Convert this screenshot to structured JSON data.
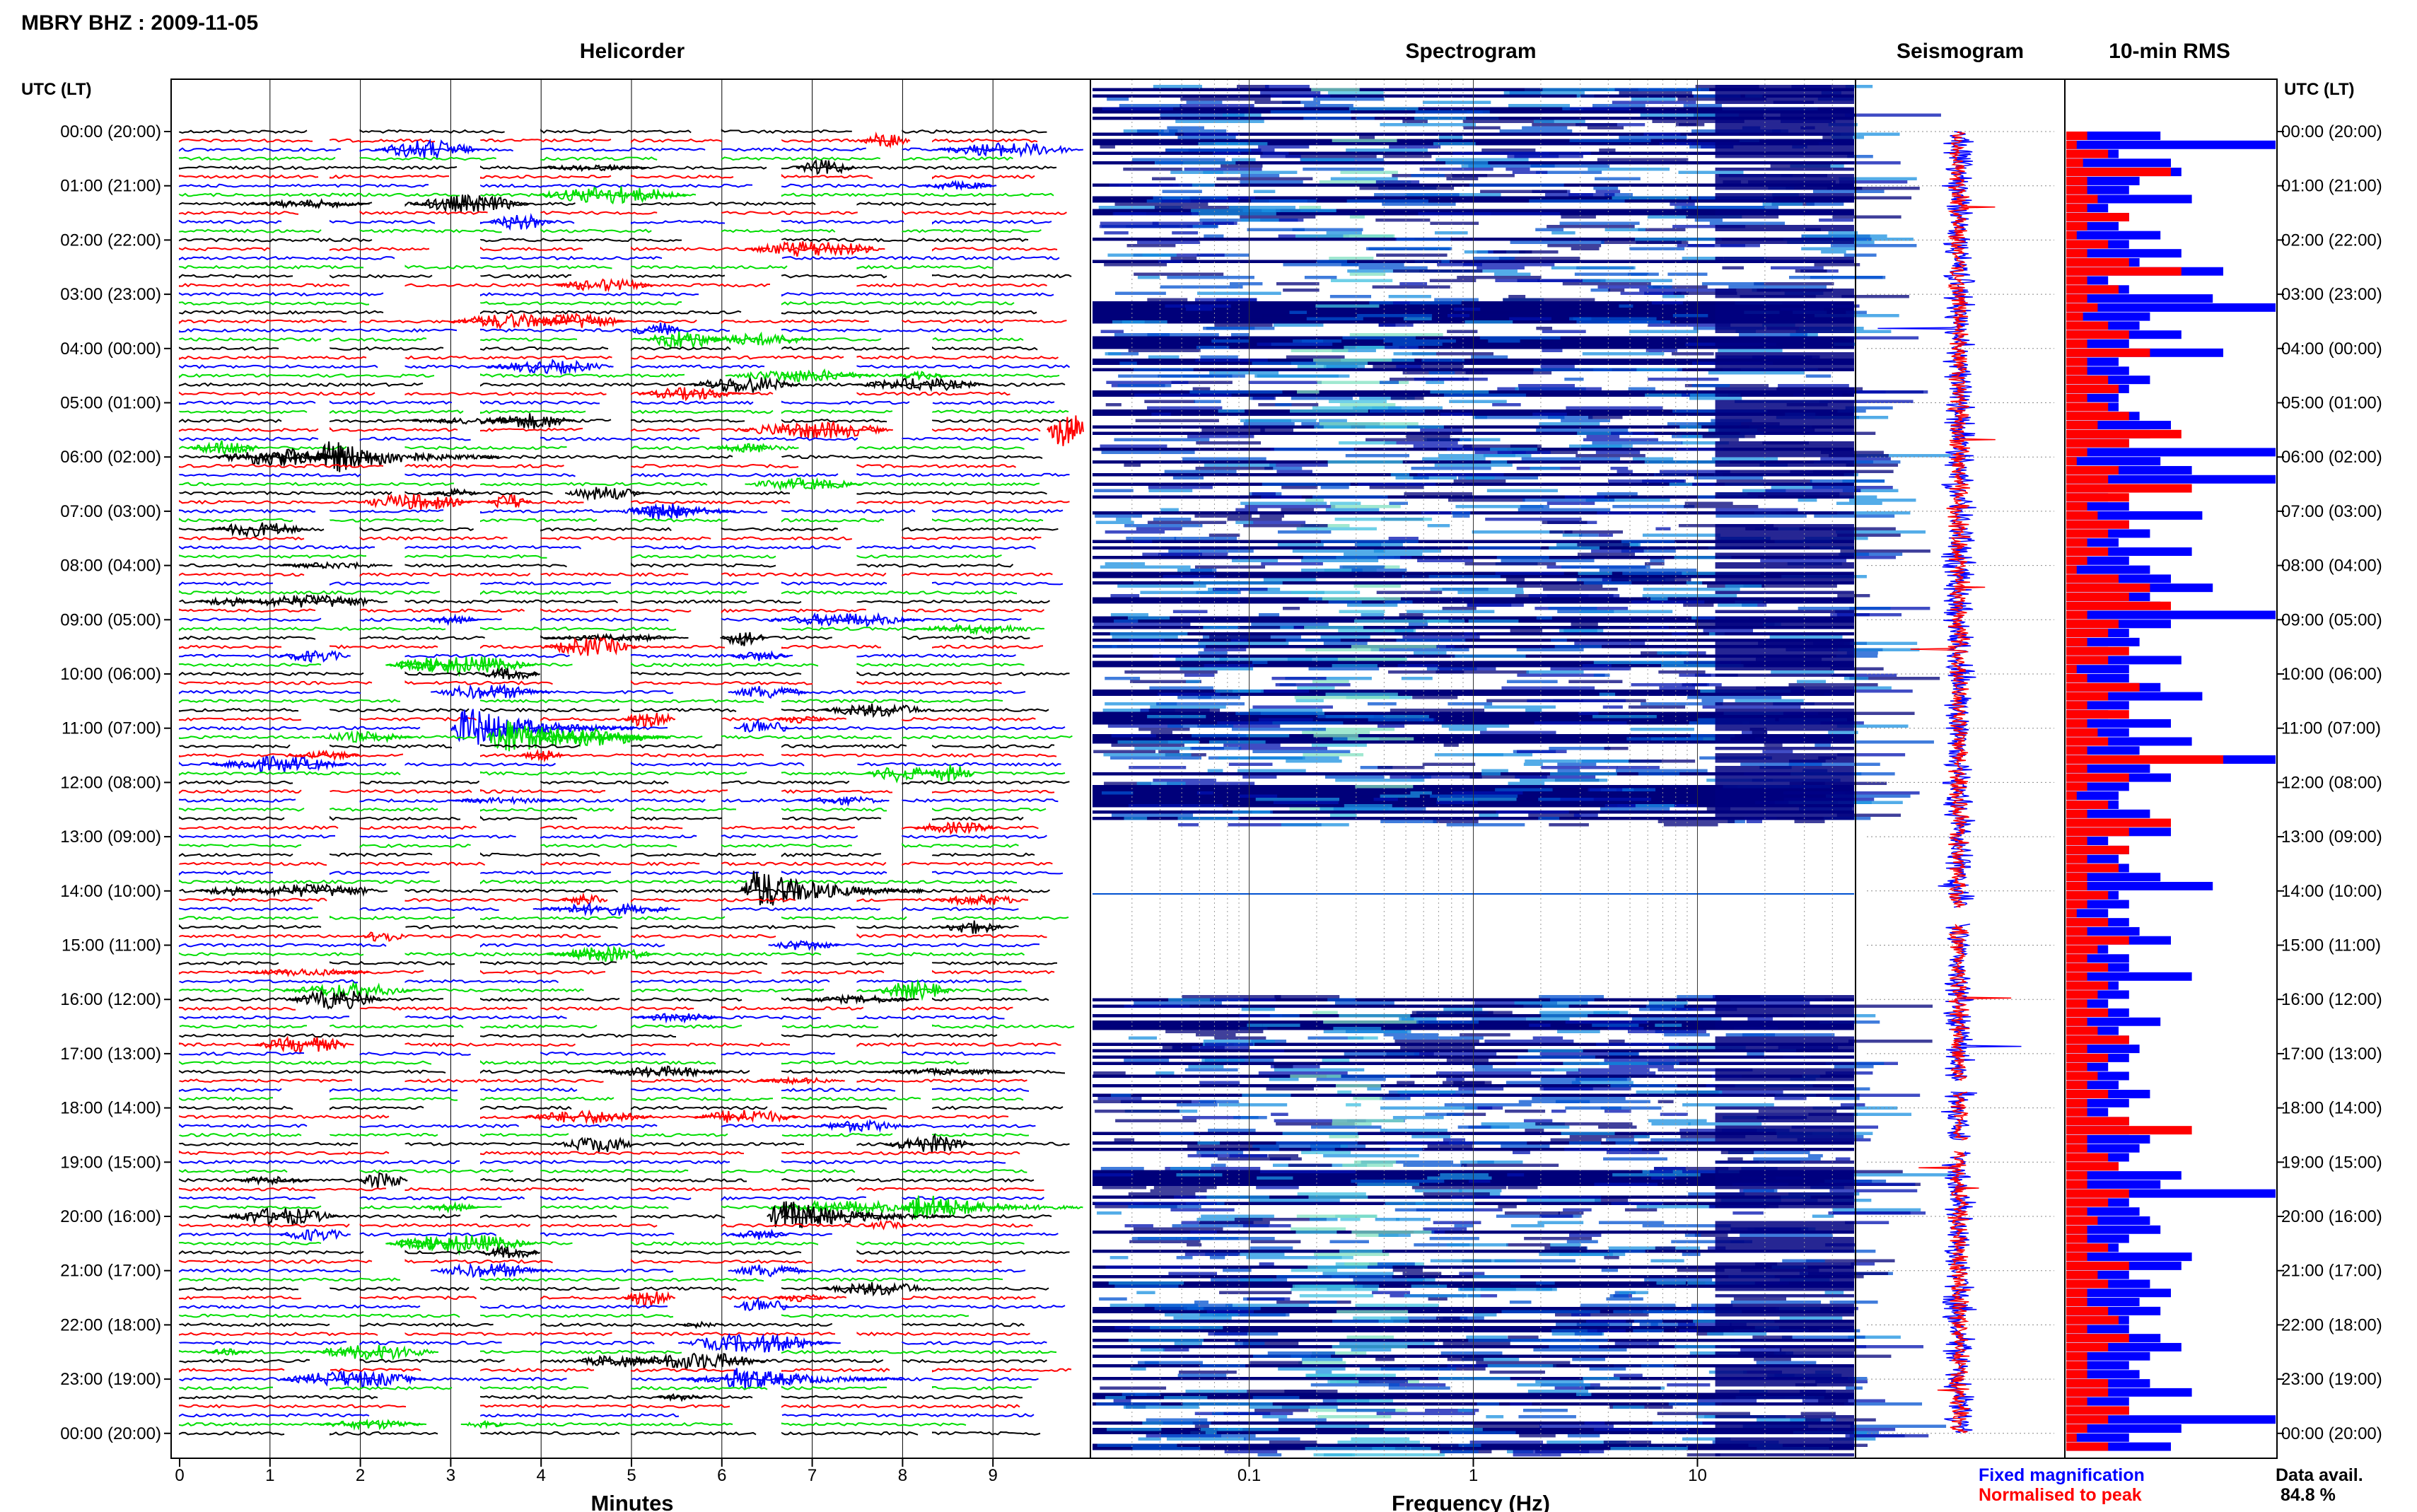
{
  "header": {
    "title": "MBRY BHZ : 2009-11-05"
  },
  "panels": {
    "helicorder": "Helicorder",
    "spectrogram": "Spectrogram",
    "seismogram": "Seismogram",
    "rms": "10-min RMS"
  },
  "time_axis_label": "UTC (LT)",
  "legend": {
    "fixed": "Fixed magnification",
    "normalised": "Normalised to peak",
    "data_avail_label": "Data avail.",
    "data_avail_value": "84.8 %"
  },
  "colors": {
    "helicorder_traces": [
      "#000000",
      "#ff0000",
      "#0000ff",
      "#00dd00"
    ],
    "fixed": "#0000ff",
    "normalised": "#ff0000",
    "spectrogram_low": "#000080",
    "spectrogram_high": "#ffff40"
  },
  "chart_data": [
    {
      "type": "line",
      "panel": "Helicorder",
      "xlabel": "Minutes",
      "ylabel": "UTC (LT)",
      "xlim": [
        0,
        10
      ],
      "x_ticks": [
        "0",
        "1",
        "2",
        "3",
        "4",
        "5",
        "6",
        "7",
        "8",
        "9"
      ],
      "rows_per_hour": 6,
      "hour_labels": [
        "00:00 (20:00)",
        "01:00 (21:00)",
        "02:00 (22:00)",
        "03:00 (23:00)",
        "04:00 (00:00)",
        "05:00 (01:00)",
        "06:00 (02:00)",
        "07:00 (03:00)",
        "08:00 (04:00)",
        "09:00 (05:00)",
        "10:00 (06:00)",
        "11:00 (07:00)",
        "12:00 (08:00)",
        "13:00 (09:00)",
        "14:00 (10:00)",
        "15:00 (11:00)",
        "16:00 (12:00)",
        "17:00 (13:00)",
        "18:00 (14:00)",
        "19:00 (15:00)",
        "20:00 (16:00)",
        "21:00 (17:00)",
        "22:00 (18:00)",
        "23:00 (19:00)",
        "00:00 (20:00)"
      ],
      "events": [
        {
          "hour": 5,
          "row": 3,
          "minute": 9.6,
          "amp": 0.9
        },
        {
          "hour": 6,
          "row": 0,
          "minute": 1.5,
          "amp": 0.8
        },
        {
          "hour": 11,
          "row": 0,
          "minute": 3.0,
          "amp": 1.0
        },
        {
          "hour": 11,
          "row": 1,
          "minute": 3.4,
          "amp": 0.9
        },
        {
          "hour": 14,
          "row": 0,
          "minute": 6.2,
          "amp": 1.0
        },
        {
          "hour": 19,
          "row": 5,
          "minute": 8.0,
          "amp": 0.7
        },
        {
          "hour": 20,
          "row": 0,
          "minute": 6.5,
          "amp": 0.8
        },
        {
          "hour": 23,
          "row": 0,
          "minute": 3.0,
          "amp": 1.0
        },
        {
          "hour": 23,
          "row": 0,
          "minute": 6.0,
          "amp": 0.6
        }
      ]
    },
    {
      "type": "heatmap",
      "panel": "Spectrogram",
      "xlabel": "Frequency (Hz)",
      "x_scale": "log",
      "xlim": [
        0.02,
        50
      ],
      "x_ticks": [
        "0.1",
        "1",
        "10"
      ],
      "peak_band_hz": [
        0.15,
        0.3
      ],
      "data_gaps_utc": [
        [
          12.8,
          15.9
        ]
      ]
    },
    {
      "type": "line",
      "panel": "Seismogram",
      "series": [
        {
          "name": "Fixed magnification",
          "color": "#0000ff"
        },
        {
          "name": "Normalised to peak",
          "color": "#ff0000"
        }
      ],
      "gaps_utc": [
        [
          14.3,
          14.6
        ],
        [
          17.5,
          17.7
        ],
        [
          18.6,
          18.8
        ]
      ]
    },
    {
      "type": "bar",
      "panel": "10-min RMS",
      "orientation": "horizontal",
      "interval_minutes": 10,
      "series": [
        {
          "name": "Fixed magnification",
          "color": "#0000ff",
          "values": [
            0.45,
            1.0,
            0.25,
            0.5,
            0.55,
            0.35,
            0.3,
            0.6,
            0.2,
            0.3,
            0.25,
            0.45,
            0.3,
            0.55,
            0.35,
            0.75,
            0.2,
            0.3,
            0.7,
            1.0,
            0.4,
            0.35,
            0.55,
            0.3,
            0.75,
            0.25,
            0.3,
            0.4,
            0.3,
            0.25,
            0.25,
            0.35,
            0.5,
            0.4,
            0.3,
            1.0,
            0.45,
            0.6,
            1.0,
            0.35,
            0.2,
            0.3,
            0.65,
            0.3,
            0.4,
            0.25,
            0.6,
            0.3,
            0.4,
            0.5,
            0.7,
            0.4,
            0.45,
            1.0,
            0.5,
            0.3,
            0.35,
            0.2,
            0.55,
            0.3,
            0.3,
            0.45,
            0.65,
            0.3,
            0.2,
            0.5,
            0.3,
            0.6,
            0.35,
            1.0,
            0.4,
            0.5,
            0.3,
            0.25,
            0.25,
            0.4,
            0.35,
            0.5,
            0.2,
            0.3,
            0.25,
            0.3,
            0.45,
            0.7,
            0.25,
            0.3,
            0.2,
            0.3,
            0.35,
            0.5,
            0.2,
            0.3,
            0.3,
            0.6,
            0.25,
            0.3,
            0.2,
            0.3,
            0.45,
            0.25,
            0.3,
            0.35,
            0.3,
            0.2,
            0.3,
            0.25,
            0.4,
            0.3,
            0.2,
            0.3,
            0.3,
            0.4,
            0.35,
            0.3,
            0.25,
            0.55,
            0.45,
            1.0,
            0.3,
            0.35,
            0.4,
            0.45,
            0.3,
            0.25,
            0.6,
            0.55,
            0.3,
            0.4,
            0.5,
            0.35,
            0.45,
            0.3,
            0.3,
            0.45,
            0.55,
            0.4,
            0.3,
            0.35,
            0.4,
            0.6,
            0.3,
            0.3,
            1.0,
            0.55,
            0.3,
            0.5
          ]
        },
        {
          "name": "Normalised to peak",
          "color": "#ff0000",
          "values": [
            0.1,
            0.05,
            0.2,
            0.08,
            0.5,
            0.1,
            0.1,
            0.15,
            0.1,
            0.3,
            0.1,
            0.05,
            0.2,
            0.1,
            0.3,
            0.55,
            0.1,
            0.25,
            0.1,
            0.15,
            0.08,
            0.2,
            0.3,
            0.1,
            0.4,
            0.1,
            0.1,
            0.2,
            0.25,
            0.1,
            0.2,
            0.3,
            0.15,
            0.55,
            0.3,
            0.1,
            0.05,
            0.25,
            0.2,
            0.6,
            0.3,
            0.1,
            0.15,
            0.3,
            0.2,
            0.1,
            0.2,
            0.1,
            0.05,
            0.25,
            0.4,
            0.3,
            0.5,
            0.1,
            0.25,
            0.2,
            0.1,
            0.3,
            0.2,
            0.05,
            0.1,
            0.35,
            0.2,
            0.1,
            0.3,
            0.1,
            0.15,
            0.2,
            0.1,
            0.75,
            0.1,
            0.3,
            0.1,
            0.05,
            0.2,
            0.1,
            0.5,
            0.3,
            0.1,
            0.3,
            0.1,
            0.25,
            0.1,
            0.1,
            0.2,
            0.1,
            0.05,
            0.2,
            0.1,
            0.3,
            0.15,
            0.1,
            0.2,
            0.1,
            0.2,
            0.15,
            0.1,
            0.2,
            0.1,
            0.15,
            0.3,
            0.1,
            0.2,
            0.1,
            0.15,
            0.1,
            0.2,
            0.1,
            0.1,
            0.3,
            0.6,
            0.1,
            0.1,
            0.2,
            0.25,
            0.1,
            0.1,
            0.3,
            0.2,
            0.1,
            0.15,
            0.1,
            0.1,
            0.2,
            0.1,
            0.3,
            0.15,
            0.2,
            0.1,
            0.1,
            0.2,
            0.25,
            0.1,
            0.3,
            0.2,
            0.1,
            0.1,
            0.1,
            0.2,
            0.2,
            0.1,
            0.3,
            0.2,
            0.1,
            0.05,
            0.2
          ]
        }
      ]
    }
  ]
}
